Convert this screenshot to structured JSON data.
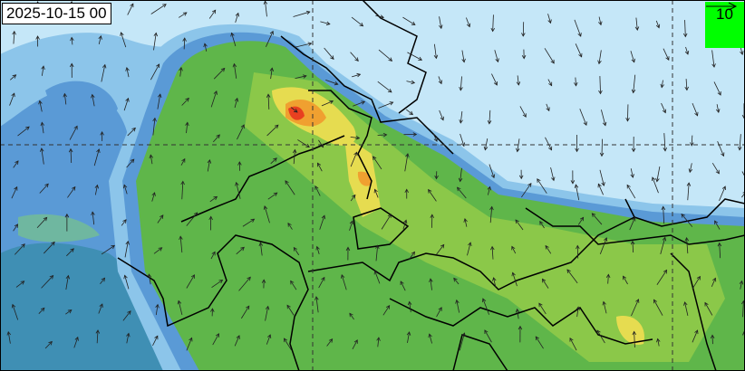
{
  "map": {
    "timestamp": "2025-10-15 00",
    "legend": {
      "reference_value": "10",
      "symbol": "wind-vector-arrow"
    },
    "colors": {
      "ocean_light": "#c5e7f8",
      "low": "#8cc5ea",
      "mid_blue": "#5a9ad6",
      "teal": "#3f8fb4",
      "green": "#5fb64a",
      "light_green": "#9acd4a",
      "yellow": "#e6dc50",
      "orange": "#f0a030",
      "red": "#e84020",
      "legend_bg": "#00ff00"
    }
  }
}
